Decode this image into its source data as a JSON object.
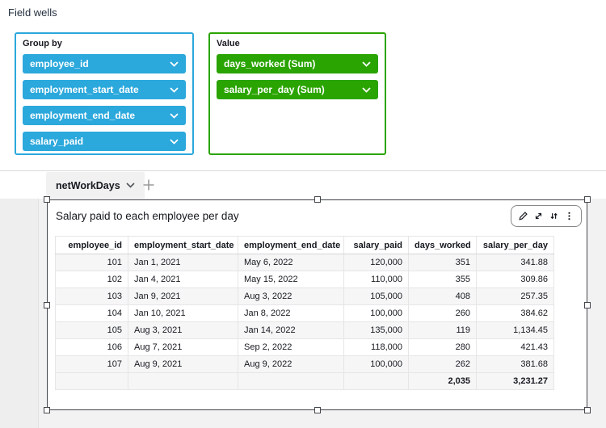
{
  "colors": {
    "groupby_accent": "#2ba8dc",
    "value_accent": "#2aa400",
    "selection_border": "#43464b",
    "canvas_bg": "#f2f2f3"
  },
  "field_wells": {
    "title": "Field wells",
    "group_by": {
      "label": "Group by",
      "fields": [
        "employee_id",
        "employment_start_date",
        "employment_end_date",
        "salary_paid"
      ]
    },
    "value": {
      "label": "Value",
      "fields": [
        "days_worked (Sum)",
        "salary_per_day (Sum)"
      ]
    },
    "pill_icon": "chevron-down-icon"
  },
  "sheet": {
    "tab_label": "netWorkDays",
    "tab_icon": "chevron-down-icon",
    "add_tab_icon": "plus-icon"
  },
  "visual": {
    "title": "Salary paid to each employee per day",
    "toolbar_icons": [
      "pencil-edit-icon",
      "maximize-icon",
      "swap-vertical-arrows-icon",
      "kebab-menu-icon"
    ],
    "table": {
      "columns": [
        "employee_id",
        "employment_start_date",
        "employment_end_date",
        "salary_paid",
        "days_worked",
        "salary_per_day"
      ],
      "rows": [
        [
          "101",
          "Jan 1, 2021",
          "May 6, 2022",
          "120,000",
          "351",
          "341.88"
        ],
        [
          "102",
          "Jan 4, 2021",
          "May 15, 2022",
          "110,000",
          "355",
          "309.86"
        ],
        [
          "103",
          "Jan 9, 2021",
          "Aug 3, 2022",
          "105,000",
          "408",
          "257.35"
        ],
        [
          "104",
          "Jan 10, 2021",
          "Jan 8, 2022",
          "100,000",
          "260",
          "384.62"
        ],
        [
          "105",
          "Aug 3, 2021",
          "Jan 14, 2022",
          "135,000",
          "119",
          "1,134.45"
        ],
        [
          "106",
          "Aug 7, 2021",
          "Sep 2, 2022",
          "118,000",
          "280",
          "421.43"
        ],
        [
          "107",
          "Aug 9, 2021",
          "Aug 9, 2022",
          "100,000",
          "262",
          "381.68"
        ]
      ],
      "totals": [
        "",
        "",
        "",
        "",
        "2,035",
        "3,231.27"
      ]
    }
  }
}
